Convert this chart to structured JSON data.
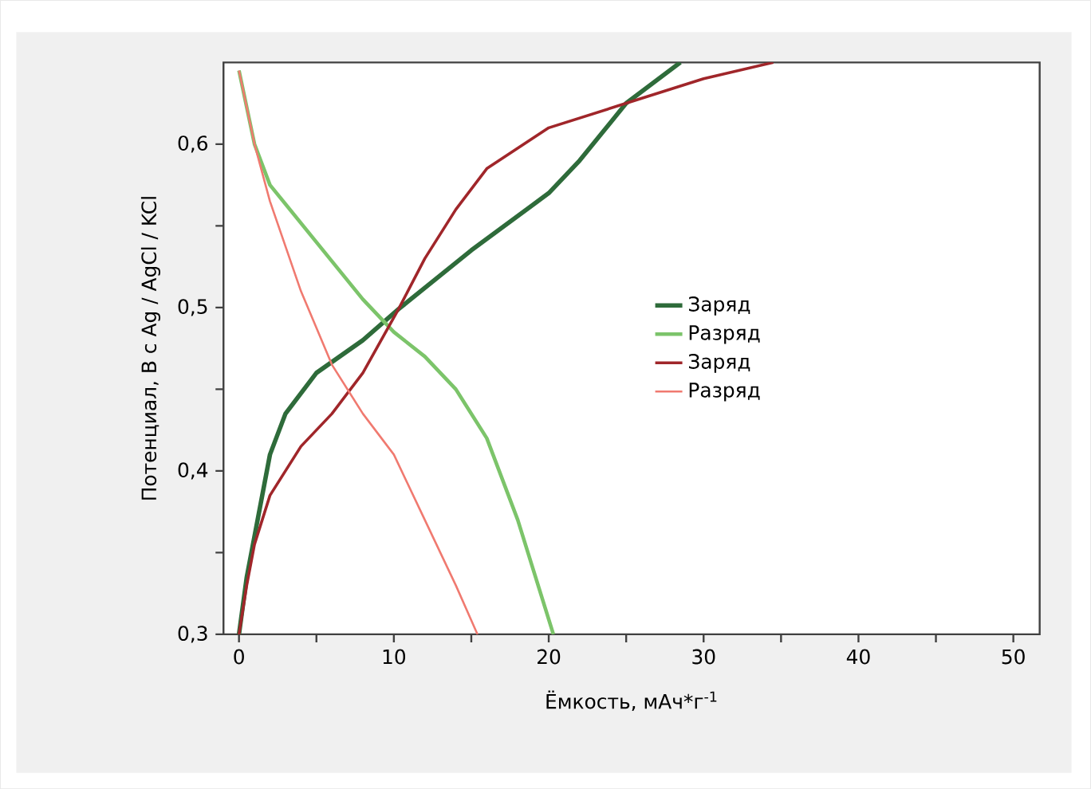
{
  "chart_data": {
    "type": "line",
    "xlabel": "Ёмкость, мАч*г$^{-1}$",
    "ylabel": "Потенциал, В с Ag / AgCl / KCl",
    "xlim": [
      -1,
      51.7
    ],
    "ylim": [
      0.3,
      0.65
    ],
    "xticks": [
      0,
      {
        "value": 5,
        "label": null
      },
      10,
      {
        "value": 15,
        "label": null
      },
      20,
      {
        "value": 25,
        "label": null
      },
      30,
      {
        "value": 35,
        "label": null
      },
      40,
      {
        "value": 45,
        "label": null
      },
      50
    ],
    "yticks": [
      {
        "value": 0.3,
        "label": "0,3"
      },
      {
        "value": 0.35,
        "label": null
      },
      {
        "value": 0.4,
        "label": "0,4"
      },
      {
        "value": 0.45,
        "label": null
      },
      {
        "value": 0.5,
        "label": "0,5"
      },
      {
        "value": 0.55,
        "label": null
      },
      {
        "value": 0.6,
        "label": "0,6"
      }
    ],
    "grid": false,
    "legend": "right",
    "marker": "none",
    "line_style": "solid",
    "series": [
      {
        "name": "Заряд",
        "color": "#2e6b3a",
        "x": [
          0,
          0.5,
          1,
          2,
          3,
          5,
          8,
          10.3,
          15,
          20,
          22,
          25,
          28.5
        ],
        "values": [
          0.3,
          0.335,
          0.36,
          0.41,
          0.435,
          0.46,
          0.48,
          0.499,
          0.535,
          0.57,
          0.59,
          0.625,
          0.65
        ]
      },
      {
        "name": "Разряд",
        "color": "#7cc46a",
        "x": [
          0,
          1,
          2,
          5,
          8,
          10,
          12,
          14,
          16,
          18,
          20.3
        ],
        "values": [
          0.645,
          0.6,
          0.575,
          0.54,
          0.505,
          0.485,
          0.47,
          0.45,
          0.42,
          0.37,
          0.3
        ]
      },
      {
        "name": "Заряд",
        "color": "#a0262a",
        "x": [
          0,
          0.5,
          1,
          2,
          4,
          6,
          8,
          10.3,
          12,
          14,
          16,
          20,
          25,
          30,
          34.5
        ],
        "values": [
          0.3,
          0.33,
          0.355,
          0.385,
          0.415,
          0.435,
          0.46,
          0.499,
          0.53,
          0.56,
          0.585,
          0.61,
          0.625,
          0.64,
          0.65
        ]
      },
      {
        "name": "Разряд",
        "color": "#f07a70",
        "x": [
          0,
          1,
          2,
          4,
          6,
          8,
          10,
          12,
          14,
          15.4
        ],
        "values": [
          0.645,
          0.6,
          0.565,
          0.51,
          0.465,
          0.435,
          0.41,
          0.37,
          0.33,
          0.3
        ]
      }
    ]
  }
}
